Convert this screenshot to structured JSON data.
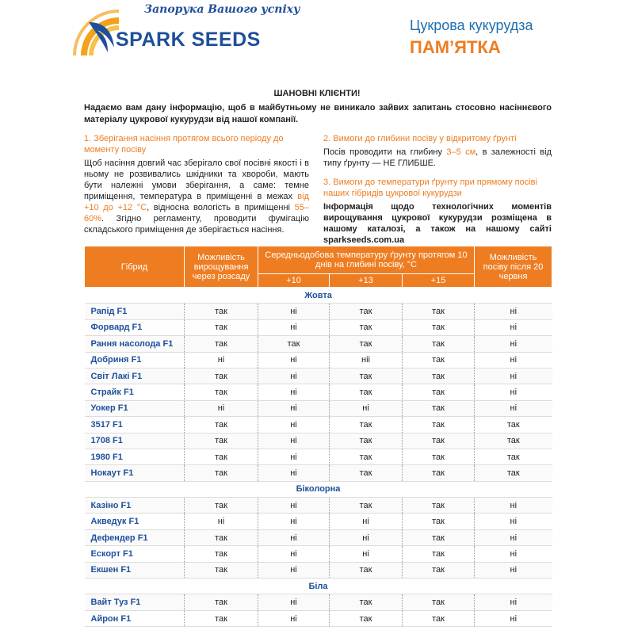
{
  "header": {
    "slogan": "Запорука Вашого успіху",
    "brand": "SPARK SEEDS",
    "product": "Цукрова кукурудза",
    "title": "ПАМ’ЯТКА"
  },
  "greeting": "ШАНОВНІ КЛІЄНТИ!",
  "intro": "Надаємо вам дану інформацію, щоб в майбутньому не виникало зайвих запитань стосовно насіннєвого матеріалу цукрової кукурудзи від нашої компанії.",
  "sections": [
    {
      "heading": "1. Зберігання насіння протягом всього періоду до моменту посіву",
      "body": [
        "Щоб насіння довгий час зберігало свої посівні якості і в ньому не розвивались шкідники та хвороби, мають бути належні умови зберігання, а саме: темне приміщення, температура в приміщенні в межах ",
        "від +10 до +12 °С",
        ", відносна вологість в приміщенні ",
        "55–60%",
        ". Згідно регламенту, проводити фумігацію складського приміщення де зберігається насіння."
      ]
    },
    {
      "heading": "2. Вимоги до глибини посіву у відкритому ґрунті",
      "body": [
        "Посів проводити на глибину ",
        "3–5 см",
        ", в залежності від типу ґрунту — НЕ ГЛИБШЕ."
      ]
    },
    {
      "heading": "3. Вимоги до температури ґрунту при прямому посіві наших гібридів цукрової кукурудзи",
      "body": [
        "Інформація щодо технологічних моментів вирощування цукрової кукурудзи розміщена в нашому каталозі, а також на нашому сайті sparkseeds.com.ua"
      ]
    }
  ],
  "table": {
    "headers": {
      "hybrid": "Гібрид",
      "seedling": "Можливість вирощування через розсаду",
      "temperature": "Середньодобова температуру ґрунту протягом 10 днів на глибині посіву, °С",
      "depths": [
        "+10",
        "+13",
        "+15"
      ],
      "late_sowing": "Можливість посіву після 20 червня"
    },
    "groups": [
      {
        "name": "Жовта",
        "rows": [
          [
            "Рапід F1",
            "так",
            "ні",
            "так",
            "так",
            "ні"
          ],
          [
            "Форвард F1",
            "так",
            "ні",
            "так",
            "так",
            "ні"
          ],
          [
            "Рання насолода F1",
            "так",
            "так",
            "так",
            "так",
            "ні"
          ],
          [
            "Добриня F1",
            "ні",
            "ні",
            "ніі",
            "так",
            "ні"
          ],
          [
            "Світ Лакі F1",
            "так",
            "ні",
            "так",
            "так",
            "ні"
          ],
          [
            "Страйк F1",
            "так",
            "ні",
            "так",
            "так",
            "ні"
          ],
          [
            "Уокер F1",
            "ні",
            "ні",
            "ні",
            "так",
            "ні"
          ],
          [
            "3517 F1",
            "так",
            "ні",
            "так",
            "так",
            "так"
          ],
          [
            "1708 F1",
            "так",
            "ні",
            "так",
            "так",
            "так"
          ],
          [
            "1980 F1",
            "так",
            "ні",
            "так",
            "так",
            "так"
          ],
          [
            "Нокаут F1",
            "так",
            "ні",
            "так",
            "так",
            "так"
          ]
        ]
      },
      {
        "name": "Біколорна",
        "rows": [
          [
            "Казіно F1",
            "так",
            "ні",
            "так",
            "так",
            "ні"
          ],
          [
            "Акведук F1",
            "ні",
            "ні",
            "ні",
            "так",
            "ні"
          ],
          [
            "Дефендер F1",
            "так",
            "ні",
            "ні",
            "так",
            "ні"
          ],
          [
            "Ескорт F1",
            "так",
            "ні",
            "ні",
            "так",
            "ні"
          ],
          [
            "Екшен F1",
            "так",
            "ні",
            "так",
            "так",
            "ні"
          ]
        ]
      },
      {
        "name": "Біла",
        "rows": [
          [
            "Вайт Туз F1",
            "так",
            "ні",
            "так",
            "так",
            "ні"
          ],
          [
            "Айрон F1",
            "так",
            "ні",
            "так",
            "так",
            "ні"
          ]
        ]
      }
    ]
  }
}
